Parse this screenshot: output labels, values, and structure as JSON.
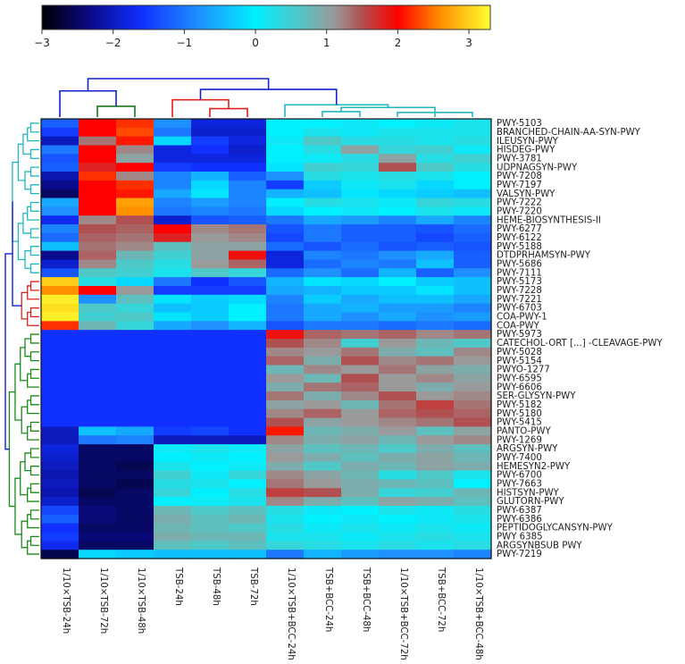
{
  "chart_data": {
    "type": "heatmap",
    "title": "",
    "xlabel": "",
    "ylabel": "",
    "colorbar": {
      "min": -3,
      "max": 3.3,
      "ticks": [
        "−3",
        "−2",
        "−1",
        "0",
        "1",
        "2",
        "3"
      ],
      "tick_values": [
        -3,
        -2,
        -1,
        0,
        1,
        2,
        3
      ],
      "stops": [
        {
          "v": -3.0,
          "c": "#000000"
        },
        {
          "v": -2.3,
          "c": "#0a0a8c"
        },
        {
          "v": -1.6,
          "c": "#1030ff"
        },
        {
          "v": -0.8,
          "c": "#1e90ff"
        },
        {
          "v": 0.0,
          "c": "#00f0ff"
        },
        {
          "v": 0.6,
          "c": "#4fc8c8"
        },
        {
          "v": 1.1,
          "c": "#9a9a9a"
        },
        {
          "v": 1.5,
          "c": "#b05050"
        },
        {
          "v": 2.0,
          "c": "#ff0000"
        },
        {
          "v": 2.6,
          "c": "#ff9000"
        },
        {
          "v": 3.3,
          "c": "#ffff30"
        }
      ]
    },
    "columns": [
      "1/10×TSB-24h",
      "1/10×TSB-72h",
      "1/10×TSB-48h",
      "TSB-24h",
      "TSB-48h",
      "TSB-72h",
      "1/10×TSB+BCC-24h",
      "TSB+BCC-24h",
      "TSB+BCC-48h",
      "1/10×TSB+BCC-72h",
      "TSB+BCC-72h",
      "1/10×TSB+BCC-48h"
    ],
    "rows": [
      "PWY-5103",
      "BRANCHED-CHAIN-AA-SYN-PWY",
      "ILEUSYN-PWY",
      "HISDEG-PWY",
      "PWY-3781",
      "UDPNAGSYN-PWY",
      "PWY-7208",
      "PWY-7197",
      "VALSYN-PWY",
      "PWY-7222",
      "PWY-7220",
      "HEME-BIOSYNTHESIS-II",
      "PWY-6277",
      "PWY-6122",
      "PWY-5188",
      "DTDPRHAMSYN-PWY",
      "PWY-5686",
      "PWY-7111",
      "PWY-5173",
      "PWY-7228",
      "PWY-7221",
      "PWY-6703",
      "COA-PWY-1",
      "COA-PWY",
      "PWY-5973",
      "CATECHOL-ORT [...] -CLEAVAGE-PWY",
      "PWY-5028",
      "PWY-5154",
      "PWYO-1277",
      "PWY-6595",
      "PWY-6606",
      "SER-GLYSYN-PWY",
      "PWY-5182",
      "PWY-5180",
      "PWY-5415",
      "PANTO-PWY",
      "PWY-1269",
      "ARGSYN-PWY",
      "PWY-7400",
      "HEMESYN2-PWY",
      "PWY-6700",
      "PWY-7663",
      "HISTSYN-PWY",
      "GLUTORN-PWY",
      "PWY-6387",
      "PWY-6386",
      "PEPTIDOGLYCANSYN-PWY",
      "PWY 6385",
      "ARGSYNBSUB PWY",
      "PWY-7219"
    ],
    "values": [
      [
        -1.2,
        2.0,
        2.2,
        -0.8,
        -1.8,
        -1.8,
        0.0,
        0.0,
        0.1,
        0.0,
        0.1,
        0.2
      ],
      [
        -1.5,
        2.0,
        2.3,
        -1.0,
        -1.9,
        -1.9,
        0.0,
        0.2,
        0.1,
        0.2,
        0.2,
        0.2
      ],
      [
        -2.0,
        1.3,
        2.1,
        -0.2,
        -1.5,
        -1.8,
        0.1,
        0.6,
        0.3,
        0.3,
        0.2,
        0.3
      ],
      [
        -1.0,
        2.0,
        1.2,
        -1.8,
        -1.6,
        -1.9,
        0.0,
        0.3,
        1.0,
        0.4,
        0.5,
        0.1
      ],
      [
        -1.3,
        2.0,
        1.0,
        -1.8,
        -1.8,
        -1.8,
        0.0,
        0.1,
        0.3,
        1.0,
        0.3,
        0.5
      ],
      [
        -1.2,
        1.8,
        2.0,
        -1.5,
        -1.6,
        -1.6,
        -0.1,
        0.5,
        0.4,
        1.5,
        0.6,
        0.3
      ],
      [
        -2.1,
        2.2,
        1.2,
        -0.9,
        -0.5,
        -1.2,
        -0.8,
        0.3,
        0.2,
        0.3,
        0.2,
        0.0
      ],
      [
        -2.3,
        2.0,
        2.2,
        -0.9,
        -0.2,
        -0.9,
        -1.5,
        -0.3,
        0.1,
        0.2,
        -0.2,
        0.0
      ],
      [
        -2.5,
        2.0,
        2.1,
        -0.6,
        -0.1,
        -0.9,
        -0.5,
        -0.4,
        -0.1,
        -0.2,
        -0.3,
        -0.4
      ],
      [
        -0.6,
        2.0,
        2.7,
        -0.9,
        -0.7,
        -0.9,
        0.0,
        0.3,
        0.2,
        0.1,
        0.4,
        0.3
      ],
      [
        -0.8,
        2.0,
        2.6,
        -1.0,
        -0.9,
        -1.0,
        -0.2,
        0.0,
        0.1,
        0.0,
        0.2,
        0.1
      ],
      [
        -1.7,
        1.2,
        1.5,
        -1.9,
        -1.3,
        -1.2,
        -1.0,
        -0.6,
        -0.7,
        -0.9,
        -0.6,
        -0.9
      ],
      [
        -0.9,
        1.5,
        1.4,
        2.0,
        1.2,
        1.3,
        -1.3,
        -1.0,
        -1.2,
        -1.2,
        -1.3,
        -1.1
      ],
      [
        -1.1,
        1.4,
        1.3,
        1.8,
        1.1,
        1.2,
        -1.4,
        -1.0,
        -1.2,
        -1.2,
        -1.4,
        -1.2
      ],
      [
        -0.4,
        1.3,
        1.2,
        0.7,
        1.0,
        1.0,
        -1.1,
        -1.3,
        -1.1,
        -1.3,
        -1.2,
        -1.3
      ],
      [
        -2.3,
        1.4,
        0.8,
        0.5,
        1.0,
        1.9,
        -1.8,
        -0.9,
        -1.0,
        -0.8,
        -0.6,
        -1.2
      ],
      [
        -1.9,
        1.2,
        0.6,
        0.3,
        1.1,
        1.4,
        -1.8,
        -1.1,
        -0.9,
        -1.0,
        -0.4,
        -1.2
      ],
      [
        -1.3,
        0.6,
        0.5,
        0.2,
        0.6,
        0.4,
        -1.1,
        -0.8,
        -1.1,
        -0.5,
        -1.2,
        -0.8
      ],
      [
        3.0,
        0.3,
        -0.2,
        -1.0,
        -1.6,
        -1.3,
        -0.5,
        -0.1,
        -0.2,
        0.0,
        -0.3,
        -0.4
      ],
      [
        2.6,
        2.0,
        1.1,
        -1.5,
        -1.5,
        -1.5,
        -0.6,
        -0.5,
        -0.3,
        -0.3,
        -0.1,
        -0.4
      ],
      [
        3.2,
        -0.8,
        0.7,
        -0.1,
        -0.3,
        -0.2,
        -0.9,
        -0.3,
        -0.6,
        -0.4,
        -0.4,
        -0.6
      ],
      [
        3.1,
        0.6,
        0.4,
        -0.4,
        -0.3,
        0.0,
        -1.0,
        -0.6,
        -0.5,
        -0.7,
        -0.7,
        -0.9
      ],
      [
        3.2,
        0.5,
        0.6,
        -0.1,
        -0.3,
        0.0,
        -1.0,
        -0.6,
        -0.8,
        -0.6,
        -0.8,
        -0.7
      ],
      [
        2.2,
        0.8,
        0.4,
        -0.6,
        -0.8,
        -0.5,
        -1.3,
        -1.0,
        -1.0,
        -1.1,
        -1.0,
        -1.1
      ],
      [
        -1.6,
        -1.6,
        -1.6,
        -1.6,
        -1.6,
        -1.6,
        1.9,
        1.4,
        1.3,
        1.4,
        1.2,
        1.3
      ],
      [
        -1.6,
        -1.6,
        -1.6,
        -1.6,
        -1.6,
        -1.6,
        1.5,
        1.2,
        0.5,
        1.1,
        0.8,
        0.6
      ],
      [
        -1.6,
        -1.6,
        -1.6,
        -1.6,
        -1.6,
        -1.6,
        1.2,
        1.1,
        1.3,
        0.9,
        0.7,
        1.2
      ],
      [
        -1.6,
        -1.6,
        -1.6,
        -1.6,
        -1.6,
        -1.6,
        1.4,
        0.9,
        1.5,
        1.2,
        1.3,
        1.1
      ],
      [
        -1.6,
        -1.6,
        -1.6,
        -1.6,
        -1.6,
        -1.6,
        0.8,
        1.2,
        1.1,
        1.3,
        1.0,
        0.9
      ],
      [
        -1.6,
        -1.6,
        -1.6,
        -1.6,
        -1.6,
        -1.6,
        1.1,
        0.8,
        1.5,
        1.1,
        1.2,
        1.0
      ],
      [
        -1.6,
        -1.6,
        -1.6,
        -1.6,
        -1.6,
        -1.6,
        0.9,
        1.3,
        1.4,
        1.1,
        0.9,
        1.1
      ],
      [
        -1.6,
        -1.6,
        -1.6,
        -1.6,
        -1.6,
        -1.6,
        1.3,
        0.9,
        1.2,
        1.5,
        1.1,
        1.2
      ],
      [
        -1.6,
        -1.6,
        -1.6,
        -1.6,
        -1.6,
        -1.6,
        1.0,
        1.1,
        0.8,
        1.3,
        1.6,
        1.3
      ],
      [
        -1.6,
        -1.6,
        -1.6,
        -1.6,
        -1.6,
        -1.6,
        1.2,
        1.4,
        1.1,
        1.4,
        1.5,
        1.4
      ],
      [
        -1.6,
        -1.6,
        -1.6,
        -1.6,
        -1.6,
        -1.6,
        1.5,
        1.0,
        1.1,
        1.2,
        1.3,
        1.5
      ],
      [
        -2.0,
        -0.4,
        -0.6,
        -1.5,
        -1.4,
        -1.6,
        2.1,
        0.8,
        0.9,
        1.1,
        0.7,
        1.0
      ],
      [
        -2.0,
        -1.0,
        -0.9,
        -2.0,
        -2.0,
        -2.0,
        1.2,
        0.9,
        1.0,
        0.8,
        1.1,
        1.2
      ],
      [
        -1.8,
        -2.5,
        -2.5,
        0.1,
        0.2,
        0.1,
        1.0,
        0.7,
        0.8,
        0.6,
        0.9,
        0.7
      ],
      [
        -1.9,
        -2.5,
        -2.5,
        0.0,
        0.1,
        0.0,
        1.1,
        0.9,
        0.7,
        0.9,
        1.0,
        0.8
      ],
      [
        -2.0,
        -2.5,
        -2.6,
        0.2,
        0.0,
        0.1,
        0.9,
        0.6,
        0.9,
        0.8,
        1.0,
        0.9
      ],
      [
        -2.1,
        -2.5,
        -2.5,
        0.5,
        0.1,
        0.4,
        1.2,
        1.0,
        0.8,
        0.3,
        0.6,
        0.2
      ],
      [
        -2.0,
        -2.5,
        -2.6,
        0.3,
        0.2,
        0.0,
        1.3,
        1.1,
        0.9,
        0.8,
        0.7,
        0.0
      ],
      [
        -2.1,
        -2.6,
        -2.5,
        0.4,
        0.0,
        0.3,
        1.6,
        1.5,
        0.9,
        0.4,
        0.5,
        0.8
      ],
      [
        -1.9,
        -2.5,
        -2.5,
        0.0,
        0.1,
        0.2,
        1.2,
        0.9,
        0.7,
        1.0,
        0.9,
        0.7
      ],
      [
        -1.4,
        -2.4,
        -2.5,
        0.8,
        0.6,
        0.7,
        0.3,
        0.1,
        0.0,
        0.2,
        0.1,
        0.3
      ],
      [
        -1.2,
        -2.4,
        -2.5,
        0.9,
        0.7,
        0.8,
        0.2,
        0.0,
        0.1,
        0.0,
        0.1,
        0.2
      ],
      [
        -1.6,
        -2.5,
        -2.5,
        0.8,
        0.7,
        0.6,
        0.3,
        0.1,
        0.2,
        0.1,
        0.2,
        0.1
      ],
      [
        -1.5,
        -2.4,
        -2.4,
        0.9,
        0.8,
        0.8,
        0.2,
        0.2,
        0.1,
        0.2,
        0.3,
        0.2
      ],
      [
        -1.7,
        -2.5,
        -2.5,
        0.7,
        0.6,
        0.7,
        0.4,
        0.3,
        0.2,
        0.3,
        0.2,
        0.3
      ],
      [
        -2.6,
        -0.2,
        -0.3,
        -0.4,
        -0.4,
        -0.4,
        -1.0,
        -0.5,
        -0.7,
        -0.8,
        -0.8,
        -0.9
      ]
    ],
    "column_dendrogram": {
      "colors": {
        "left": "#1a7a1a",
        "mid": "#e02020",
        "right": "#20b8c0",
        "root": "#1020d0"
      },
      "merges": [
        [
          1,
          2,
          "left"
        ],
        [
          4,
          5,
          "mid"
        ],
        [
          3,
          -2,
          "mid"
        ],
        [
          9,
          11,
          "right"
        ],
        [
          -4,
          10,
          "right"
        ],
        [
          7,
          8,
          "right"
        ],
        [
          -6,
          -5,
          "right"
        ],
        [
          6,
          -7,
          "right"
        ],
        [
          -3,
          -8,
          "root"
        ],
        [
          0,
          -1,
          "root"
        ],
        [
          -10,
          -9,
          "root"
        ]
      ],
      "heights": [
        0.28,
        0.22,
        0.45,
        0.12,
        0.18,
        0.14,
        0.25,
        0.32,
        0.72,
        0.68,
        1.0
      ]
    },
    "row_dendrogram": {
      "colors": {
        "top": "#20b8c0",
        "mid": "#e02020",
        "bottom": "#1a8a1a",
        "root": "#1020d0"
      },
      "groups": [
        {
          "rows": [
            0,
            17
          ],
          "color": "top"
        },
        {
          "rows": [
            18,
            23
          ],
          "color": "mid"
        },
        {
          "rows": [
            24,
            49
          ],
          "color": "bottom"
        }
      ]
    }
  }
}
